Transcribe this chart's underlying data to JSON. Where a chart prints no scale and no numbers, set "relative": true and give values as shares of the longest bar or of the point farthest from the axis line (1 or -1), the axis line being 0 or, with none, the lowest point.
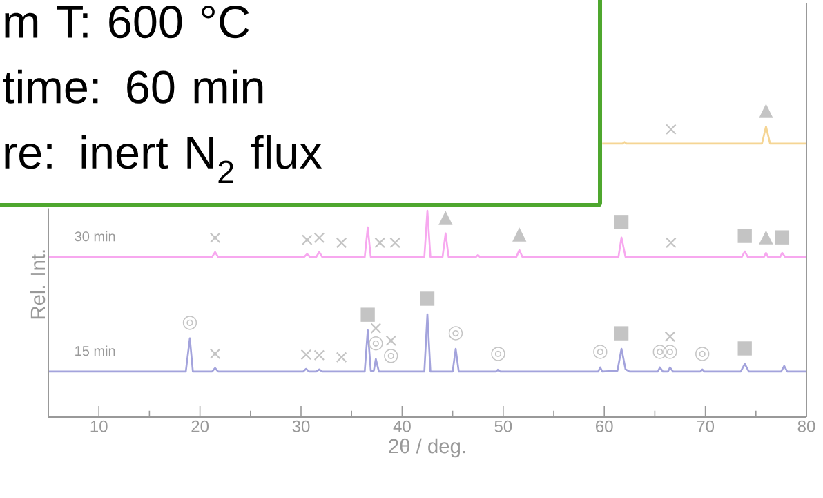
{
  "chart_data": {
    "type": "line",
    "relative": true,
    "xlabel": "2θ / deg.",
    "ylabel": "Rel. Int.",
    "xlim": [
      5,
      80
    ],
    "xticks": [
      10,
      20,
      30,
      40,
      50,
      60,
      70,
      80
    ],
    "grid": false,
    "marker": "none",
    "line_style": "solid",
    "series": [
      {
        "name": "15 min",
        "color": "#a3a3dc",
        "x": [
          5,
          18.6,
          19.0,
          19.3,
          21.2,
          21.5,
          21.8,
          30.2,
          30.5,
          30.8,
          31.5,
          31.8,
          32.1,
          36.3,
          36.6,
          36.9,
          37.2,
          37.4,
          37.7,
          42.2,
          42.5,
          42.8,
          45.0,
          45.3,
          45.6,
          49.3,
          49.5,
          49.7,
          59.4,
          59.6,
          59.8,
          61.3,
          61.7,
          62.1,
          62.5,
          65.3,
          65.5,
          65.8,
          66.3,
          66.5,
          66.8,
          69.5,
          69.7,
          69.9,
          73.5,
          73.9,
          74.3,
          77.5,
          77.8,
          78.1,
          80
        ],
        "values": [
          0.157,
          0.157,
          0.271,
          0.157,
          0.157,
          0.169,
          0.157,
          0.157,
          0.166,
          0.157,
          0.157,
          0.164,
          0.157,
          0.157,
          0.299,
          0.16,
          0.16,
          0.2,
          0.157,
          0.157,
          0.354,
          0.157,
          0.157,
          0.235,
          0.157,
          0.157,
          0.164,
          0.157,
          0.157,
          0.171,
          0.157,
          0.16,
          0.235,
          0.165,
          0.157,
          0.157,
          0.171,
          0.157,
          0.157,
          0.171,
          0.157,
          0.157,
          0.164,
          0.157,
          0.157,
          0.183,
          0.157,
          0.157,
          0.176,
          0.157,
          0.157
        ]
      },
      {
        "name": "30 min",
        "color": "#f7a8ef",
        "x": [
          5,
          21.2,
          21.5,
          21.8,
          30.3,
          30.6,
          30.9,
          31.5,
          31.8,
          32.1,
          36.3,
          36.6,
          36.9,
          42.2,
          42.5,
          42.8,
          44.0,
          44.3,
          44.6,
          47.3,
          47.5,
          47.7,
          51.3,
          51.6,
          51.9,
          61.4,
          61.7,
          62.1,
          73.6,
          73.9,
          74.2,
          75.8,
          76.0,
          76.2,
          77.4,
          77.6,
          77.9,
          80
        ],
        "values": [
          0.551,
          0.551,
          0.568,
          0.551,
          0.551,
          0.561,
          0.551,
          0.551,
          0.568,
          0.551,
          0.551,
          0.653,
          0.551,
          0.551,
          0.71,
          0.551,
          0.551,
          0.632,
          0.551,
          0.551,
          0.558,
          0.551,
          0.551,
          0.575,
          0.551,
          0.551,
          0.618,
          0.551,
          0.551,
          0.57,
          0.551,
          0.551,
          0.565,
          0.551,
          0.551,
          0.565,
          0.551,
          0.551
        ]
      },
      {
        "color": "#f5d594",
        "x": [
          59.8,
          61.8,
          62.0,
          62.2,
          75.6,
          76.0,
          76.4,
          80
        ],
        "values": [
          0.941,
          0.941,
          0.946,
          0.941,
          0.941,
          1.0,
          0.941,
          0.941
        ]
      }
    ],
    "annotations": [
      "m T: 600 °C",
      "time: 60 min",
      "re: inert N$_{2}$ flux",
      {
        "text": "◎",
        "x": 19.0,
        "y": 0.271
      },
      {
        "text": "×",
        "x": 21.5,
        "y": 0.169
      },
      {
        "text": "×",
        "x": 30.5,
        "y": 0.166
      },
      {
        "text": "×",
        "x": 31.8,
        "y": 0.164
      },
      {
        "text": "×",
        "x": 34.0,
        "y": 0.157
      },
      {
        "text": "■",
        "x": 36.6,
        "y": 0.299
      },
      {
        "text": "◎",
        "x": 37.4,
        "y": 0.2
      },
      {
        "text": "×",
        "x": 37.4,
        "y": 0.2
      },
      {
        "text": "◎",
        "x": 38.9,
        "y": 0.157
      },
      {
        "text": "×",
        "x": 38.9,
        "y": 0.157
      },
      {
        "text": "■",
        "x": 42.5,
        "y": 0.354
      },
      {
        "text": "◎",
        "x": 45.3,
        "y": 0.235
      },
      {
        "text": "◎",
        "x": 49.5,
        "y": 0.164
      },
      {
        "text": "◎",
        "x": 59.6,
        "y": 0.171
      },
      {
        "text": "■",
        "x": 61.7,
        "y": 0.235
      },
      {
        "text": "◎",
        "x": 65.5,
        "y": 0.171
      },
      {
        "text": "◎",
        "x": 66.5,
        "y": 0.171
      },
      {
        "text": "×",
        "x": 66.5,
        "y": 0.171
      },
      {
        "text": "◎",
        "x": 69.7,
        "y": 0.164
      },
      {
        "text": "■",
        "x": 73.9,
        "y": 0.183
      },
      {
        "text": "×",
        "x": 21.5,
        "y": 0.568
      },
      {
        "text": "×",
        "x": 30.6,
        "y": 0.561
      },
      {
        "text": "×",
        "x": 31.8,
        "y": 0.568
      },
      {
        "text": "×",
        "x": 34.0,
        "y": 0.551
      },
      {
        "text": "×",
        "x": 37.8,
        "y": 0.551
      },
      {
        "text": "×",
        "x": 39.3,
        "y": 0.551
      },
      {
        "text": "▲",
        "x": 44.3,
        "y": 0.632
      },
      {
        "text": "▲",
        "x": 51.6,
        "y": 0.575
      },
      {
        "text": "■",
        "x": 61.7,
        "y": 0.618
      },
      {
        "text": "×",
        "x": 66.6,
        "y": 0.551
      },
      {
        "text": "■",
        "x": 73.9,
        "y": 0.57
      },
      {
        "text": "▲",
        "x": 76.0,
        "y": 0.565
      },
      {
        "text": "■",
        "x": 77.6,
        "y": 0.565
      },
      {
        "text": "×",
        "x": 66.6,
        "y": 0.941
      },
      {
        "text": "▲",
        "x": 76.0,
        "y": 1.0
      }
    ]
  }
}
